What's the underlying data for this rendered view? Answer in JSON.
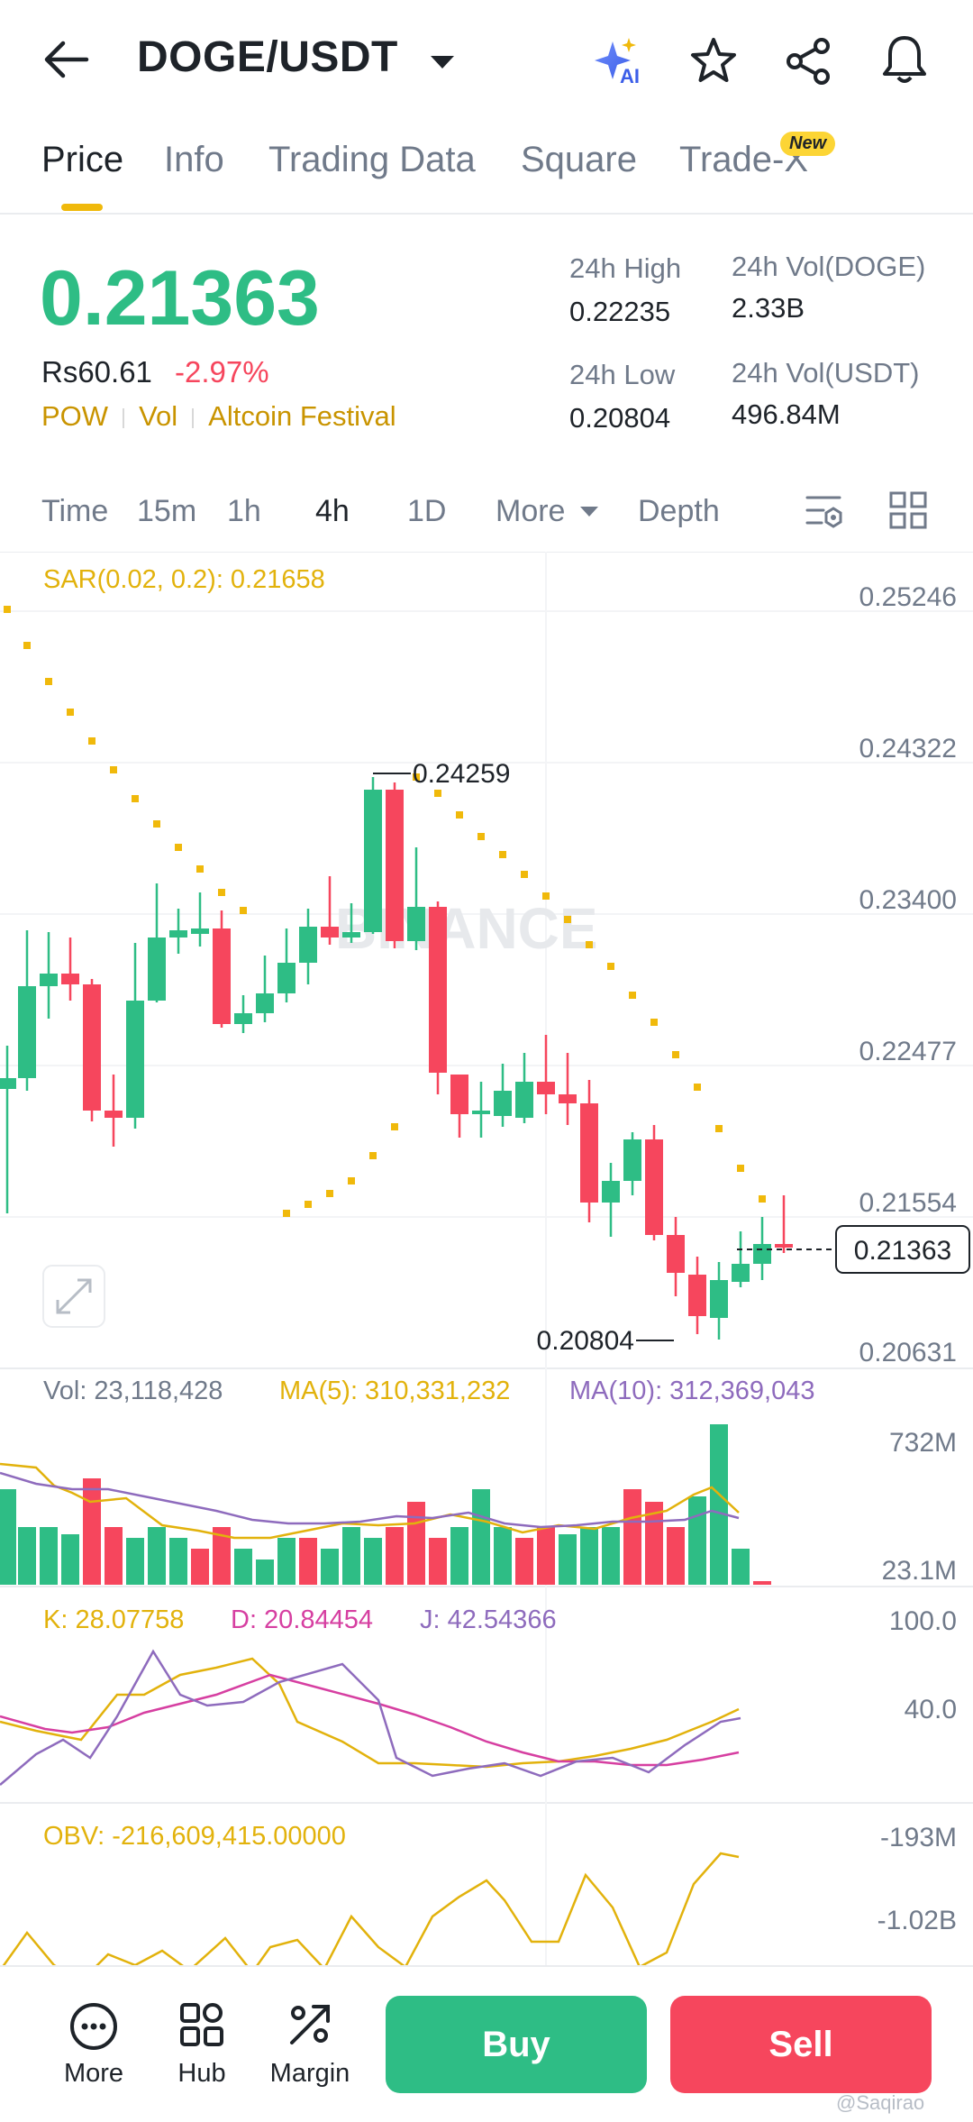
{
  "header": {
    "pair": "DOGE/USDT",
    "ai_badge": "AI"
  },
  "tabs": [
    {
      "label": "Price"
    },
    {
      "label": "Info"
    },
    {
      "label": "Trading Data"
    },
    {
      "label": "Square"
    },
    {
      "label": "Trade-X"
    }
  ],
  "new_badge": "New",
  "price": {
    "last": "0.21363",
    "local": "Rs60.61",
    "change": "-2.97%",
    "tags": [
      "POW",
      "Vol",
      "Altcoin Festival"
    ],
    "high_label": "24h High",
    "high_value": "0.22235",
    "low_label": "24h Low",
    "low_value": "0.20804",
    "vol_base_label": "24h Vol(DOGE)",
    "vol_base_value": "2.33B",
    "vol_quote_label": "24h Vol(USDT)",
    "vol_quote_value": "496.84M"
  },
  "toolbar": {
    "time": "Time",
    "i15m": "15m",
    "i1h": "1h",
    "i4h": "4h",
    "i1d": "1D",
    "more": "More",
    "depth": "Depth"
  },
  "chart": {
    "sar_label": "SAR(0.02, 0.2): 0.21658",
    "price_axis": [
      "0.25246",
      "0.24322",
      "0.23400",
      "0.22477",
      "0.21554",
      "0.20631"
    ],
    "current_price_tag": "0.21363",
    "high_marker": "0.24259",
    "low_marker": "0.20804",
    "watermark": "BINANCE",
    "vol_label": "Vol: 23,118,428",
    "ma5_label": "MA(5): 310,331,232",
    "ma10_label": "MA(10): 312,369,043",
    "vol_axis": [
      "732M",
      "23.1M"
    ],
    "k_label": "K: 28.07758",
    "d_label": "D: 20.84454",
    "j_label": "J: 42.54366",
    "kdj_axis": [
      "100.0",
      "40.0"
    ],
    "obv_label": "OBV: -216,609,415.00000",
    "obv_axis": [
      "-193M",
      "-1.02B"
    ],
    "colors": {
      "up": "#2ebd85",
      "down": "#f6465d",
      "sar": "#f0b90b",
      "ma5": "#e2b20c",
      "ma10": "#8e6bbd",
      "k": "#e2b20c",
      "d": "#d63fa1",
      "j": "#8e6bbd",
      "obv": "#e2b20c"
    }
  },
  "bottom": {
    "more": "More",
    "hub": "Hub",
    "margin": "Margin",
    "buy": "Buy",
    "sell": "Sell"
  },
  "watermark_text": "@Saqirao"
}
